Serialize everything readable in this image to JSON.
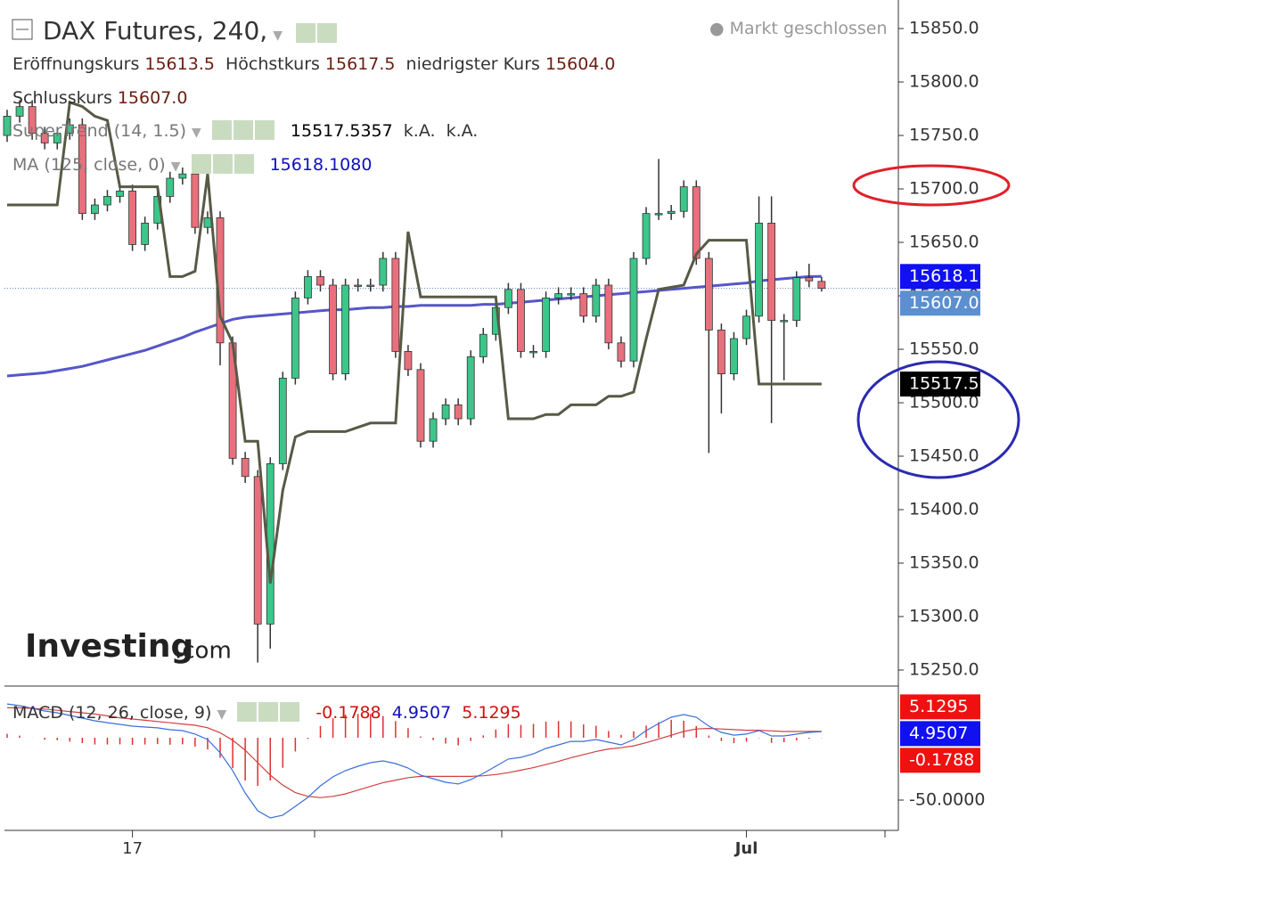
{
  "header": {
    "title": "DAX Futures, 240,",
    "status": "Markt geschlossen"
  },
  "chart_data": {
    "type": "candlestick",
    "categories": [
      null,
      null,
      null,
      null,
      null,
      null,
      null,
      null,
      null,
      null,
      "17",
      null,
      null,
      null,
      null,
      null,
      null,
      null,
      null,
      null,
      null,
      null,
      null,
      null,
      null,
      null,
      null,
      null,
      null,
      null,
      null,
      null,
      null,
      null,
      null,
      null,
      null,
      null,
      null,
      null,
      null,
      null,
      null,
      null,
      null,
      null,
      null,
      null,
      null,
      null,
      null,
      null,
      null,
      null,
      null,
      null,
      null,
      null,
      null,
      "Jul",
      null,
      null,
      null,
      null,
      null,
      null
    ],
    "open": [
      15750,
      15768,
      15777,
      15752,
      15743,
      15752,
      15760,
      15677,
      15685,
      15693,
      15698,
      15648,
      15668,
      15693,
      15710,
      15714,
      15664,
      15673,
      15556,
      15448,
      15431,
      15293,
      15443,
      15523,
      15598,
      15618,
      15610,
      15527,
      15610,
      15610,
      15610,
      15635,
      15548,
      15531,
      15464,
      15485,
      15498,
      15485,
      15543,
      15564,
      15589,
      15606,
      15548,
      15548,
      15598,
      15602,
      15602,
      15581,
      15610,
      15556,
      15539,
      15635,
      15677,
      15677,
      15679,
      15702,
      15635,
      15568,
      15527,
      15560,
      15581,
      15668,
      15577,
      15577,
      15617,
      15613.5
    ],
    "high": [
      15774,
      15783,
      15783,
      15758,
      15758,
      15766,
      15766,
      15691,
      15699,
      15704,
      15704,
      15674,
      15699,
      15716,
      15720,
      15720,
      15679,
      15679,
      15562,
      15454,
      15437,
      15449,
      15529,
      15604,
      15624,
      15624,
      15616,
      15616,
      15616,
      15616,
      15641,
      15641,
      15554,
      15537,
      15491,
      15504,
      15504,
      15549,
      15570,
      15595,
      15612,
      15612,
      15554,
      15604,
      15608,
      15608,
      15608,
      15616,
      15616,
      15562,
      15641,
      15683,
      15728,
      15685,
      15708,
      15708,
      15641,
      15574,
      15566,
      15587,
      15693,
      15693,
      15583,
      15623,
      15630,
      15617.5
    ],
    "low": [
      15744,
      15762,
      15746,
      15737,
      15737,
      15746,
      15671,
      15671,
      15679,
      15687,
      15642,
      15642,
      15662,
      15687,
      15704,
      15658,
      15658,
      15535,
      15442,
      15425,
      15257,
      15270,
      15437,
      15517,
      15592,
      15604,
      15521,
      15521,
      15604,
      15604,
      15604,
      15542,
      15525,
      15458,
      15458,
      15479,
      15479,
      15479,
      15537,
      15558,
      15583,
      15542,
      15542,
      15542,
      15592,
      15596,
      15575,
      15575,
      15550,
      15533,
      15533,
      15629,
      15671,
      15671,
      15673,
      15629,
      15453,
      15490,
      15521,
      15554,
      15575,
      15481,
      15521,
      15571,
      15608,
      15604
    ],
    "close": [
      15768,
      15777,
      15752,
      15743,
      15752,
      15760,
      15677,
      15685,
      15693,
      15698,
      15648,
      15668,
      15693,
      15710,
      15714,
      15664,
      15673,
      15556,
      15448,
      15431,
      15293,
      15443,
      15523,
      15598,
      15618,
      15610,
      15527,
      15610,
      15610,
      15610,
      15635,
      15548,
      15531,
      15464,
      15485,
      15498,
      15485,
      15543,
      15564,
      15589,
      15606,
      15548,
      15548,
      15598,
      15602,
      15602,
      15581,
      15610,
      15556,
      15539,
      15635,
      15677,
      15677,
      15679,
      15702,
      15635,
      15568,
      15527,
      15560,
      15581,
      15668,
      15577,
      15577,
      15617,
      15614,
      15607
    ],
    "ohlc_names": [
      "Eröffnungskurs",
      "Höchstkurs",
      "niedrigster Kurs",
      "Schlusskurs"
    ],
    "ohlc_value_labels": [
      "15613.5",
      "15617.5",
      "15604.0",
      "15607.0"
    ],
    "up_color": "#3cc68a",
    "down_color": "#e8707c",
    "ylim": [
      15235,
      15876.7
    ],
    "yticks": [
      {
        "value": 15850,
        "label": "15850.0"
      },
      {
        "value": 15800,
        "label": "15800.0"
      },
      {
        "value": 15750,
        "label": "15750.0"
      },
      {
        "value": 15700,
        "label": "15700.0"
      },
      {
        "value": 15650,
        "label": "15650.0"
      },
      {
        "value": 15600,
        "label": "15600.0"
      },
      {
        "value": 15550,
        "label": "15550.0"
      },
      {
        "value": 15500,
        "label": "15500.0"
      },
      {
        "value": 15450,
        "label": "15450.0"
      },
      {
        "value": 15400,
        "label": "15400.0"
      },
      {
        "value": 15350,
        "label": "15350.0"
      },
      {
        "value": 15300,
        "label": "15300.0"
      },
      {
        "value": 15250,
        "label": "15250.0"
      }
    ],
    "series": [
      {
        "name": "SuperTrend (14, 1.5)",
        "color": "#575a45",
        "legend_values": [
          "15517.5357",
          "k.A.",
          "k.A."
        ],
        "values": [
          15685,
          15685,
          15685,
          15685,
          15685,
          15781,
          15777,
          15768,
          15764,
          15702,
          15702,
          15702,
          15702,
          15618,
          15618,
          15623,
          15714,
          15581,
          15556,
          15464,
          15464,
          15331,
          15418,
          15468,
          15473,
          15473,
          15473,
          15473,
          15477,
          15481,
          15481,
          15481,
          15660,
          15599,
          15599,
          15599,
          15599,
          15599,
          15599,
          15599,
          15485,
          15485,
          15485,
          15489,
          15489,
          15498,
          15498,
          15498,
          15506,
          15506,
          15510,
          15560,
          15606,
          15608,
          15610,
          15639,
          15652,
          15652,
          15652,
          15652,
          15517.5357,
          15517.5357,
          15517.5357,
          15517.5357,
          15517.5357,
          15517.5357
        ]
      },
      {
        "name": "MA (125, close, 0)",
        "color": "#5656c8",
        "legend_values": [
          "15618.1080"
        ],
        "values": [
          15525,
          15526,
          15527,
          15528,
          15530,
          15532,
          15534,
          15537,
          15540,
          15543,
          15546,
          15549,
          15553,
          15557,
          15561,
          15566,
          15570,
          15574,
          15578,
          15580,
          15581,
          15582,
          15583,
          15584,
          15585,
          15586,
          15587,
          15587,
          15588,
          15589,
          15589,
          15590,
          15590,
          15591,
          15591,
          15591,
          15591,
          15591,
          15592,
          15592,
          15593,
          15594,
          15595,
          15596,
          15597,
          15598,
          15599,
          15600,
          15601,
          15602,
          15603,
          15604,
          15605,
          15606,
          15607,
          15608,
          15609,
          15610,
          15611,
          15612,
          15614,
          15615,
          15616,
          15617,
          15618,
          15618.108
        ]
      }
    ],
    "price_tags": [
      {
        "value": 15618.1,
        "label": "15618.1",
        "color": "#1010f0"
      },
      {
        "value": 15607,
        "label": "15607.0",
        "color": "#5b8fd0"
      },
      {
        "value": 15517.5,
        "label": "15517.5",
        "color": "#000000"
      }
    ],
    "logo": [
      "Investing",
      ".com"
    ]
  },
  "macd": {
    "type": "macd",
    "name": "MACD (12, 26, close, 9)",
    "legend_values": [
      "-0.1788",
      "4.9507",
      "5.1295"
    ],
    "ylim": [
      -74.3,
      40
    ],
    "yticks": [
      {
        "value": -50,
        "label": "-50.0000"
      }
    ],
    "histogram_color": "#e03030",
    "macd_color": "#3a6fd8",
    "signal_color": "#d04040",
    "histogram_values": [
      3.1,
      1.7,
      0.1,
      -1.6,
      -2,
      -3.1,
      -4.3,
      -5.4,
      -5.4,
      -5.3,
      -5.7,
      -5.4,
      -5.1,
      -5.6,
      -5.3,
      -7.1,
      -9.4,
      -16.1,
      -24.4,
      -34.3,
      -38.6,
      -34.3,
      -24.1,
      -11,
      -0.9,
      9.4,
      15.6,
      18.6,
      19.1,
      19,
      17.4,
      13.3,
      7.7,
      1,
      -1.9,
      -4.7,
      -6.1,
      -2.6,
      1.9,
      6.6,
      10.9,
      10.3,
      11.1,
      12.9,
      13.3,
      13.1,
      10.6,
      9.6,
      5.4,
      2.3,
      5.1,
      9.7,
      12.4,
      14.4,
      13.6,
      9.4,
      1.8,
      -2.7,
      -4.4,
      -3.1,
      -0.3,
      -4.1,
      -3.6,
      -2.1,
      -0.8,
      -0.1788
    ],
    "macd_values": [
      27.1,
      25.7,
      23.6,
      21.4,
      20,
      17.9,
      15.7,
      13.6,
      12.1,
      10.7,
      9.3,
      8.6,
      7.9,
      6.4,
      5.7,
      2.9,
      -1.4,
      -12.1,
      -26.4,
      -44.3,
      -58.6,
      -64.3,
      -62.1,
      -55,
      -47.9,
      -38.6,
      -31.4,
      -26.4,
      -22.9,
      -20,
      -18.6,
      -20.7,
      -24.3,
      -30,
      -32.9,
      -35.7,
      -37.1,
      -33.6,
      -28.6,
      -22.9,
      -17.1,
      -15.7,
      -12.9,
      -8.6,
      -5.7,
      -2.9,
      -2.9,
      -1.4,
      -3.6,
      -5.7,
      -1.4,
      5.7,
      11.4,
      16.4,
      18.6,
      16.4,
      9.3,
      4.3,
      2.1,
      2.9,
      5.7,
      1.4,
      1.4,
      2.9,
      4.3,
      4.9507
    ],
    "signal_values": [
      24,
      24,
      23.5,
      23,
      22,
      21,
      20,
      19,
      17.5,
      16,
      15,
      14,
      13,
      12,
      11,
      10,
      8,
      4,
      -2,
      -10,
      -20,
      -30,
      -38,
      -44,
      -47,
      -48,
      -47,
      -45,
      -42,
      -39,
      -36,
      -34,
      -32,
      -31,
      -31,
      -31,
      -31,
      -31,
      -30.5,
      -29.5,
      -28,
      -26,
      -24,
      -21.5,
      -19,
      -16,
      -13.5,
      -11,
      -9,
      -8,
      -6.5,
      -4,
      -1,
      2,
      5,
      7,
      7.5,
      7,
      6.5,
      6,
      6,
      5.5,
      5,
      5,
      5.1,
      5.1295
    ],
    "price_tags": [
      {
        "value": 5.1295,
        "label": "5.1295",
        "color": "#f01010"
      },
      {
        "value": 4.9507,
        "label": "4.9507",
        "color": "#1010f0"
      },
      {
        "value": -0.1788,
        "label": "-0.1788",
        "color": "#f01010"
      }
    ]
  }
}
